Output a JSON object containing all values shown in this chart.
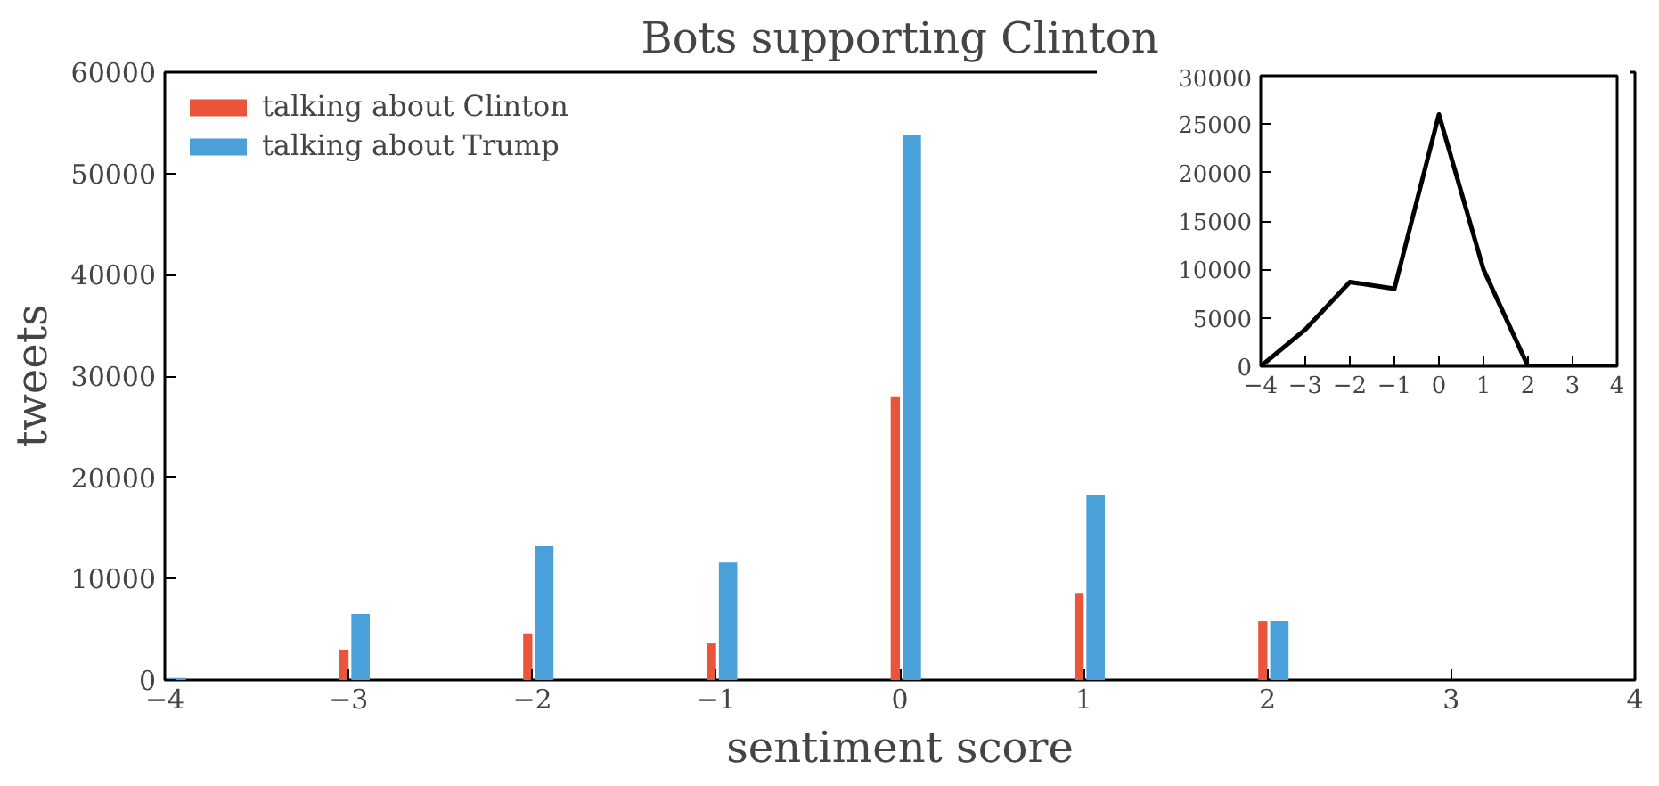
{
  "chart_data": [
    {
      "type": "bar",
      "title": "Bots supporting Clinton",
      "xlabel": "sentiment score",
      "ylabel": "tweets",
      "x": [
        -4,
        -3,
        -2,
        -1,
        0,
        1,
        2,
        3,
        4
      ],
      "series": [
        {
          "name": "talking about Clinton",
          "color": "#e8553a",
          "values": [
            0,
            3000,
            4600,
            3600,
            28000,
            8600,
            5800,
            0,
            0
          ]
        },
        {
          "name": "talking about Trump",
          "color": "#4aa0d8",
          "values": [
            200,
            6500,
            13200,
            11600,
            53800,
            18300,
            5800,
            0,
            0
          ]
        }
      ],
      "xlim": [
        -4,
        4
      ],
      "ylim": [
        0,
        60000
      ],
      "xticks": [
        {
          "value": -4,
          "label": "−4"
        },
        {
          "value": -3,
          "label": "−3"
        },
        {
          "value": -2,
          "label": "−2"
        },
        {
          "value": -1,
          "label": "−1"
        },
        0,
        1,
        2,
        3,
        4
      ],
      "yticks": [
        0,
        10000,
        20000,
        30000,
        40000,
        50000,
        60000
      ],
      "legend": "top left",
      "grid": false
    },
    {
      "type": "line",
      "x": [
        -4,
        -3,
        -2,
        -1,
        0,
        1,
        2,
        3,
        4
      ],
      "series": [
        {
          "color": "#000000",
          "values": [
            0,
            3800,
            8700,
            8000,
            26000,
            10000,
            0,
            0,
            0
          ]
        }
      ],
      "xlim": [
        -4,
        4
      ],
      "ylim": [
        0,
        30000
      ],
      "xticks": [
        {
          "value": -4,
          "label": "−4"
        },
        {
          "value": -3,
          "label": "−3"
        },
        {
          "value": -2,
          "label": "−2"
        },
        {
          "value": -1,
          "label": "−1"
        },
        0,
        1,
        2,
        3,
        4
      ],
      "yticks": [
        0,
        5000,
        10000,
        15000,
        20000,
        25000,
        30000
      ],
      "grid": false,
      "marker": "none",
      "line_style": "solid"
    }
  ]
}
